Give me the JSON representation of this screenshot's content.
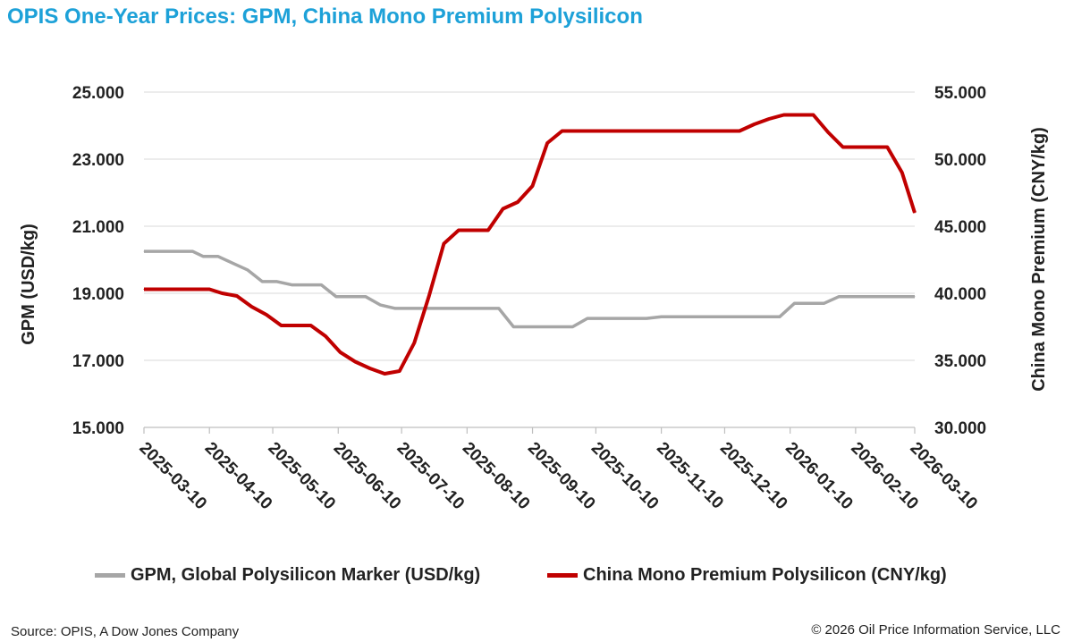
{
  "title": "OPIS One-Year Prices: GPM, China Mono Premium Polysilicon",
  "source": "Source: OPIS, A Dow Jones Company",
  "copyright": "© 2026 Oil Price Information Service, LLC",
  "chart_data": {
    "type": "line",
    "xlabel": "",
    "ylabel_left": "GPM (USD/kg)",
    "ylabel_right": "China Mono Premium (CNY/kg)",
    "x_ticks": [
      "2025-03-10",
      "2025-04-10",
      "2025-05-10",
      "2025-06-10",
      "2025-07-10",
      "2025-08-10",
      "2025-09-10",
      "2025-10-10",
      "2025-11-10",
      "2025-12-10",
      "2026-01-10",
      "2026-02-10",
      "2026-03-10"
    ],
    "y_left": {
      "min": 15,
      "max": 25,
      "ticks": [
        "15.000",
        "17.000",
        "19.000",
        "21.000",
        "23.000",
        "25.000"
      ]
    },
    "y_right": {
      "min": 30,
      "max": 55,
      "ticks": [
        "30.000",
        "35.000",
        "40.000",
        "45.000",
        "50.000",
        "55.000"
      ]
    },
    "grid": true,
    "legend_position": "bottom",
    "series": [
      {
        "name": "GPM, Global Polysilicon Marker (USD/kg)",
        "axis": "left",
        "color": "#a6a6a6",
        "points": [
          [
            "2025-03-10",
            20.25
          ],
          [
            "2025-04-02",
            20.25
          ],
          [
            "2025-04-07",
            20.1
          ],
          [
            "2025-04-14",
            20.1
          ],
          [
            "2025-04-21",
            19.9
          ],
          [
            "2025-04-28",
            19.7
          ],
          [
            "2025-05-05",
            19.35
          ],
          [
            "2025-05-12",
            19.35
          ],
          [
            "2025-05-19",
            19.25
          ],
          [
            "2025-06-02",
            19.25
          ],
          [
            "2025-06-09",
            18.9
          ],
          [
            "2025-06-23",
            18.9
          ],
          [
            "2025-06-30",
            18.65
          ],
          [
            "2025-07-07",
            18.55
          ],
          [
            "2025-08-25",
            18.55
          ],
          [
            "2025-09-01",
            18.0
          ],
          [
            "2025-09-29",
            18.0
          ],
          [
            "2025-10-06",
            18.25
          ],
          [
            "2025-11-03",
            18.25
          ],
          [
            "2025-11-10",
            18.3
          ],
          [
            "2026-01-05",
            18.3
          ],
          [
            "2026-01-12",
            18.7
          ],
          [
            "2026-01-26",
            18.7
          ],
          [
            "2026-02-02",
            18.9
          ],
          [
            "2026-03-10",
            18.9
          ]
        ]
      },
      {
        "name": "China Mono Premium Polysilicon (CNY/kg)",
        "axis": "right",
        "color": "#c00000",
        "points": [
          [
            "2025-03-10",
            40.3
          ],
          [
            "2025-04-10",
            40.3
          ],
          [
            "2025-04-16",
            40.0
          ],
          [
            "2025-04-23",
            39.8
          ],
          [
            "2025-04-30",
            39.0
          ],
          [
            "2025-05-07",
            38.4
          ],
          [
            "2025-05-14",
            37.6
          ],
          [
            "2025-05-28",
            37.6
          ],
          [
            "2025-06-04",
            36.8
          ],
          [
            "2025-06-11",
            35.6
          ],
          [
            "2025-06-18",
            34.9
          ],
          [
            "2025-06-25",
            34.4
          ],
          [
            "2025-07-02",
            34.0
          ],
          [
            "2025-07-09",
            34.2
          ],
          [
            "2025-07-16",
            36.3
          ],
          [
            "2025-07-23",
            39.8
          ],
          [
            "2025-07-30",
            43.7
          ],
          [
            "2025-08-06",
            44.7
          ],
          [
            "2025-08-20",
            44.7
          ],
          [
            "2025-08-27",
            46.3
          ],
          [
            "2025-09-03",
            46.8
          ],
          [
            "2025-09-10",
            48.0
          ],
          [
            "2025-09-17",
            51.2
          ],
          [
            "2025-09-24",
            52.1
          ],
          [
            "2025-12-17",
            52.1
          ],
          [
            "2025-12-24",
            52.6
          ],
          [
            "2025-12-31",
            53.0
          ],
          [
            "2026-01-07",
            53.3
          ],
          [
            "2026-01-21",
            53.3
          ],
          [
            "2026-01-28",
            52.0
          ],
          [
            "2026-02-04",
            50.9
          ],
          [
            "2026-02-25",
            50.9
          ],
          [
            "2026-03-04",
            49.0
          ],
          [
            "2026-03-10",
            46.0
          ]
        ]
      }
    ]
  }
}
